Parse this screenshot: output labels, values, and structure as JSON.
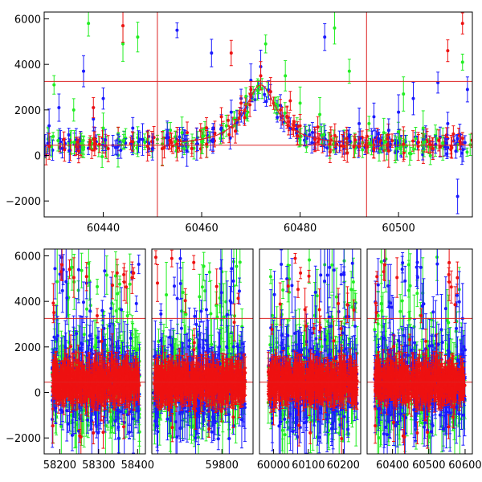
{
  "colors": {
    "series_blue": "#1a1aff",
    "series_green": "#22ee22",
    "series_red": "#ee1111",
    "reference_line": "#dd2222",
    "model_curve": "#dd2222",
    "frame": "#000000"
  },
  "chart_data": [
    {
      "type": "scatter",
      "title": "",
      "xlabel": "",
      "ylabel": "",
      "error_bars": true,
      "xlim": [
        60428,
        60515
      ],
      "ylim": [
        -2700,
        6300
      ],
      "x_ticks": [
        60440,
        60460,
        60480,
        60500
      ],
      "y_ticks": [
        -2000,
        0,
        2000,
        4000,
        6000
      ],
      "hlines": [
        450,
        3250
      ],
      "vlines": [
        60451,
        60493.5
      ],
      "model_curve": {
        "shape": "lorentzian-peak",
        "peak_x": 60472,
        "peak_y": 3100,
        "baseline": 450,
        "width": 4
      },
      "series": [
        {
          "color": "series_blue",
          "x": [
            60429,
            60431,
            60433,
            60436,
            60438,
            60440,
            60443,
            60446,
            60448,
            60450,
            60453,
            60455,
            60457,
            60459,
            60462,
            60464,
            60466,
            60468,
            60470,
            60472,
            60474,
            60476,
            60478,
            60481,
            60483,
            60485,
            60488,
            60490,
            60492,
            60495,
            60498,
            60500,
            60503,
            60505,
            60508,
            60510,
            60512,
            60514
          ],
          "y": [
            1300,
            2100,
            900,
            3700,
            1600,
            2500,
            400,
            1200,
            700,
            300,
            900,
            5500,
            200,
            500,
            4500,
            1200,
            1900,
            2500,
            3300,
            3900,
            2800,
            2200,
            1200,
            900,
            700,
            5200,
            600,
            900,
            1400,
            1700,
            1100,
            1900,
            2500,
            700,
            3200,
            1400,
            -1800,
            2900
          ]
        },
        {
          "color": "series_green",
          "x": [
            60430,
            60434,
            60437,
            60440,
            60444,
            60447,
            60449,
            60452,
            60456,
            60460,
            60465,
            60469,
            60473,
            60477,
            60480,
            60484,
            60487,
            60490,
            60494,
            60497,
            60501,
            60505,
            60509,
            60513
          ],
          "y": [
            3100,
            2000,
            5800,
            1200,
            4900,
            5200,
            700,
            300,
            1000,
            600,
            1300,
            2600,
            4900,
            3500,
            2300,
            1800,
            5600,
            3700,
            1400,
            1000,
            2700,
            1200,
            500,
            4100
          ]
        },
        {
          "color": "series_red",
          "x": [
            60429,
            60432,
            60435,
            60438,
            60441,
            60444,
            60446,
            60449,
            60452,
            60455,
            60458,
            60461,
            60464,
            60466,
            60468,
            60470,
            60472,
            60474,
            60476,
            60478,
            60480,
            60483,
            60486,
            60489,
            60492,
            60495,
            60498,
            60501,
            60504,
            60507,
            60510,
            60513
          ],
          "y": [
            400,
            700,
            200,
            2100,
            300,
            5700,
            600,
            400,
            300,
            500,
            300,
            500,
            1700,
            4500,
            2300,
            2900,
            3500,
            2800,
            2000,
            2400,
            1300,
            700,
            500,
            400,
            400,
            300,
            200,
            500,
            400,
            300,
            4600,
            5800
          ]
        }
      ]
    },
    {
      "type": "scatter",
      "title": "",
      "xlabel": "",
      "ylabel": "",
      "error_bars": true,
      "segmented_x_axis": true,
      "ylim": [
        -2700,
        6300
      ],
      "y_ticks": [
        -2000,
        0,
        2000,
        4000,
        6000
      ],
      "hlines": [
        450,
        3250
      ],
      "segments": [
        {
          "xlim": [
            58160,
            58420
          ],
          "x_ticks": [
            58200,
            58300,
            58400
          ],
          "data_range": [
            58180,
            58405
          ]
        },
        {
          "xlim": [
            59620,
            59880
          ],
          "x_ticks": [
            59800
          ],
          "data_range": [
            59625,
            59860
          ]
        },
        {
          "xlim": [
            59960,
            60250
          ],
          "x_ticks": [
            60000,
            60100,
            60200
          ],
          "data_range": [
            59985,
            60240
          ]
        },
        {
          "xlim": [
            60330,
            60620
          ],
          "x_ticks": [
            60400,
            60500,
            60600
          ],
          "data_range": [
            60350,
            60600
          ]
        }
      ],
      "series": [
        {
          "color": "series_blue",
          "name": ""
        },
        {
          "color": "series_green",
          "name": ""
        },
        {
          "color": "series_red",
          "name": ""
        }
      ]
    }
  ]
}
